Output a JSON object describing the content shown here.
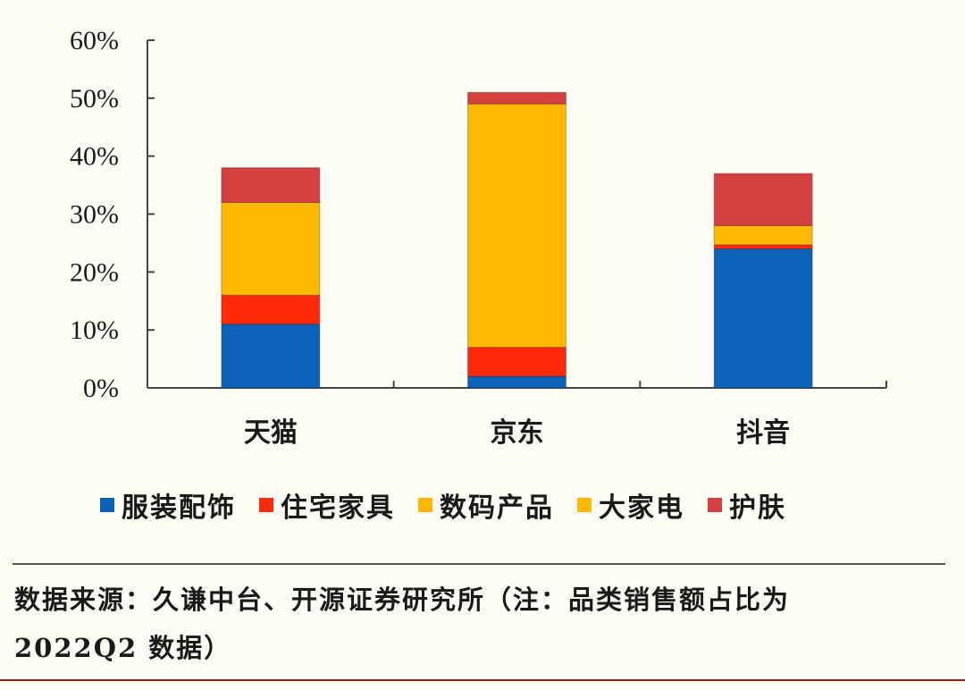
{
  "chart_data": {
    "type": "bar",
    "stacked": true,
    "title": "",
    "xlabel": "",
    "ylabel": "",
    "ylim": [
      0,
      60
    ],
    "yticks": [
      "0%",
      "10%",
      "20%",
      "30%",
      "40%",
      "50%",
      "60%"
    ],
    "grid": false,
    "legend_position": "bottom",
    "categories": [
      "天猫",
      "京东",
      "抖音"
    ],
    "series": [
      {
        "name": "服装配饰",
        "color": "#0a63b8",
        "values": [
          11,
          2,
          24
        ]
      },
      {
        "name": "住宅家具",
        "color": "#ff2a0a",
        "values": [
          5,
          5,
          0.7
        ]
      },
      {
        "name": "数码产品",
        "color": "#ffb800",
        "values": [
          16,
          42,
          3.3
        ]
      },
      {
        "name": "大家电",
        "color": "#ffb800",
        "values": [
          0,
          0,
          0
        ]
      },
      {
        "name": "护肤",
        "color": "#d43f3f",
        "values": [
          6,
          2,
          9
        ]
      }
    ],
    "totals": [
      38,
      51,
      37
    ]
  },
  "legend": {
    "items": [
      {
        "label": "服装配饰",
        "color": "#0a63b8"
      },
      {
        "label": "住宅家具",
        "color": "#ff2a0a"
      },
      {
        "label": "数码产品",
        "color": "#ffb800"
      },
      {
        "label": "大家电",
        "color": "#ffb800"
      },
      {
        "label": "护肤",
        "color": "#d43f3f"
      }
    ]
  },
  "footnote": {
    "line1": "数据来源：久谦中台、开源证券研究所（注：品类销售额占比为",
    "line2": "2022Q2 数据）"
  }
}
